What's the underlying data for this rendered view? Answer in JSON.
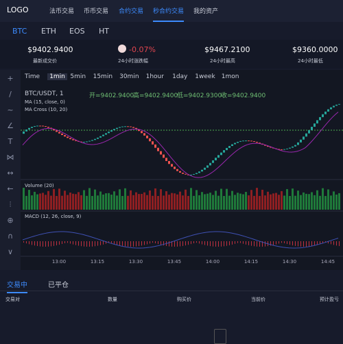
{
  "nav": {
    "logo": "LOGO",
    "items": [
      "法币交易",
      "币币交易",
      "合约交易",
      "秒合约交易",
      "我的资产"
    ]
  },
  "coins": [
    "BTC",
    "ETH",
    "EOS",
    "HT"
  ],
  "stats": [
    {
      "value": "$9402.9400",
      "label": "最新成交价"
    },
    {
      "value": "-0.07%",
      "label": "24小时涨跌幅"
    },
    {
      "value": "$9467.2100",
      "label": "24小时最高"
    },
    {
      "value": "$9360.0000",
      "label": "24小时最低"
    }
  ],
  "intervals": [
    "Time",
    "1min",
    "5min",
    "15min",
    "30min",
    "1hour",
    "1day",
    "1week",
    "1mon"
  ],
  "chart": {
    "symbol": "BTC/USDT, 1",
    "open": "开=9402.9400",
    "high": "高=9402.9400",
    "low": "低=9402.9300",
    "close": "收=9402.9400",
    "studies": [
      "MA (15, close, 0)",
      "MA Cross (10, 20)"
    ],
    "volume": "Volume (20)",
    "macd": "MACD (12, 26, close, 9)",
    "times": [
      "13:00",
      "13:15",
      "13:30",
      "13:45",
      "14:00",
      "14:15",
      "14:30",
      "14:45"
    ]
  },
  "orders": {
    "tabs": [
      "交易中",
      "已平仓"
    ],
    "columns": [
      "交易对",
      "数量",
      "购买价",
      "当前价",
      "预计盈亏"
    ]
  }
}
